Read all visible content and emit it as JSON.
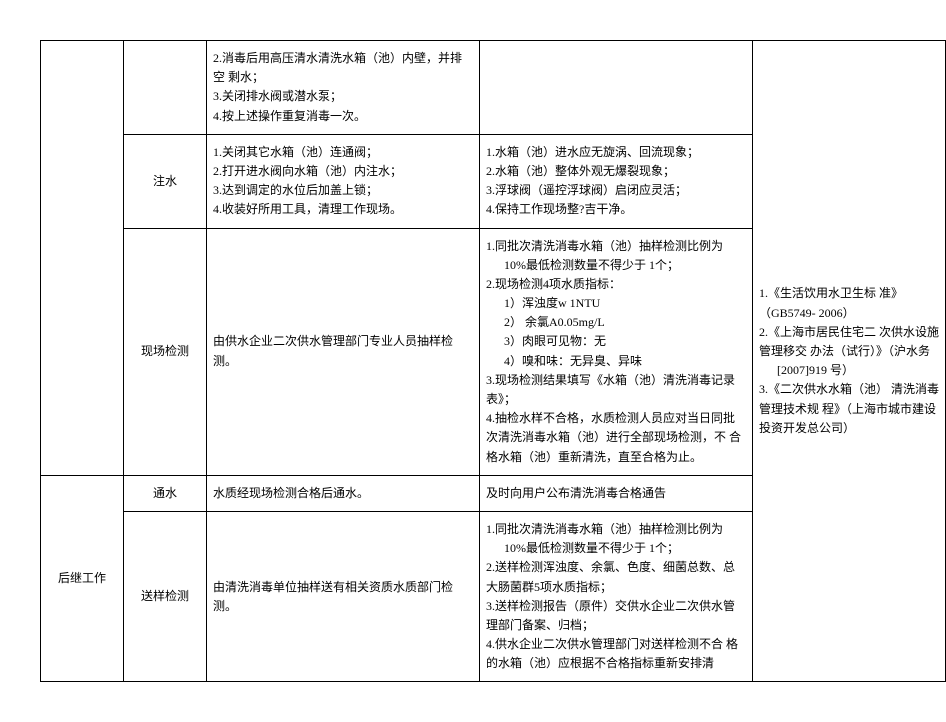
{
  "rows": {
    "r1": {
      "c3": "2.消毒后用高压清水清洗水箱（池）内壁，并排空 剩水；\n3.关闭排水阀或潜水泵；\n4.按上述操作重复消毒一次。",
      "c4": ""
    },
    "r2": {
      "c2": "注水",
      "c3": "1.关闭其它水箱（池）连通阀；\n2.打开进水阀向水箱（池）内注水；\n3.达到调定的水位后加盖上锁；\n4.收装好所用工具，清理工作现场。",
      "c4": "1.水箱（池）进水应无旋涡、回流现象；\n2.水箱（池）整体外观无爆裂现象；\n3.浮球阀（遥控浮球阀）启闭应灵活；\n4.保持工作现场整?吉干净。"
    },
    "r3": {
      "c2": "现场检测",
      "c3": "由供水企业二次供水管理部门专业人员抽样检测。",
      "c4_1": "1.同批次清洗消毒水箱（池）抽样检测比例为",
      "c4_1a": "10%最低检测数量不得少于 1个；",
      "c4_2": "2.现场检测4项水质指标：",
      "c4_2a": "1）浑浊度w 1NTU",
      "c4_2b": "2） 余氯A0.05mg/L",
      "c4_2c": "3）肉眼可见物：无",
      "c4_2d": "4）嗅和味：无异臭、异味",
      "c4_3": "3.现场检测结果填写《水箱（池）清洗消毒记录 表》；",
      "c4_4": "4.抽检水样不合格，水质检测人员应对当日同批 次清洗消毒水箱（池）进行全部现场检测，不 合格水箱（池）重新清洗，直至合格为止。"
    },
    "r4": {
      "c2": "通水",
      "c3": "水质经现场检测合格后通水。",
      "c4": "及时向用户公布清洗消毒合格通告"
    },
    "r5": {
      "c1": "后继工作",
      "c2": "送样检测",
      "c3": "由清洗消毒单位抽样送有相关资质水质部门检测。",
      "c4_1": "1.同批次清洗消毒水箱（池）抽样检测比例为",
      "c4_1a": "10%最低检测数量不得少于 1个；",
      "c4_2": "2.送样检测浑浊度、余氯、色度、细菌总数、总 大肠菌群5项水质指标；",
      "c4_3": "3.送样检测报告（原件）交供水企业二次供水管 理部门备案、归档；",
      "c4_4": "4.供水企业二次供水管理部门对送样检测不合 格的水箱（池）应根据不合格指标重新安排清"
    },
    "c5_1": "1.《生活饮用水卫生标 准》（GB5749- 2006）",
    "c5_2": "2.《上海市居民住宅二 次供水设施管理移交 办法（试行）》（沪水务",
    "c5_2a": "[2007]919 号）",
    "c5_3": "3.《二次供水水箱（池） 清洗消毒管理技术规 程》（上海市城市建设 投资开发总公司）"
  }
}
